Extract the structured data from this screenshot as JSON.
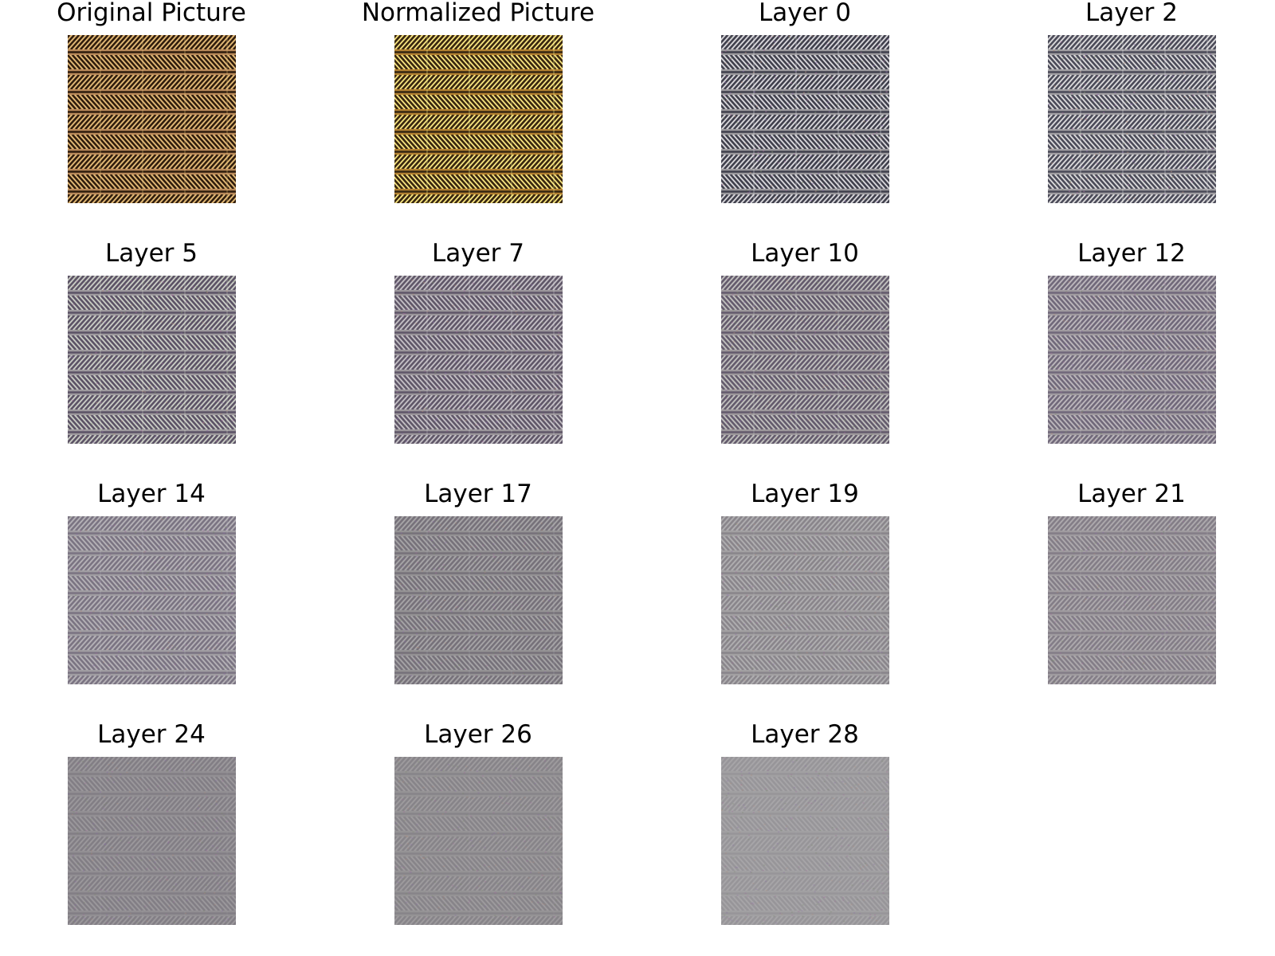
{
  "panels": [
    {
      "title": "Original Picture",
      "style": "original",
      "base": "#b8895a",
      "dark": "#2e1c0c",
      "light": "#e8c47a",
      "contrast": 1.0
    },
    {
      "title": "Normalized Picture",
      "style": "normalized",
      "base": "#a8752a",
      "dark": "#1a0d04",
      "light": "#ffff9a",
      "contrast": 1.0
    },
    {
      "title": "Layer 0",
      "style": "layer",
      "base": "#9c9a9e",
      "dark": "#3a3a48",
      "light": "#e8e8ec",
      "contrast": 0.95
    },
    {
      "title": "Layer 2",
      "style": "layer",
      "base": "#a19fa3",
      "dark": "#404050",
      "light": "#eeeeee",
      "contrast": 0.9
    },
    {
      "title": "Layer 5",
      "style": "layer",
      "base": "#9e9a9e",
      "dark": "#4a4056",
      "light": "#e0e6d8",
      "contrast": 0.8
    },
    {
      "title": "Layer 7",
      "style": "layer",
      "base": "#9b969b",
      "dark": "#4a4056",
      "light": "#dcd8e0",
      "contrast": 0.75
    },
    {
      "title": "Layer 10",
      "style": "layer",
      "base": "#9d989c",
      "dark": "#4a4058",
      "light": "#dadcd6",
      "contrast": 0.7
    },
    {
      "title": "Layer 12",
      "style": "layer",
      "base": "#a09ba0",
      "dark": "#504660",
      "light": "#d8d4da",
      "contrast": 0.6
    },
    {
      "title": "Layer 14",
      "style": "layer",
      "base": "#a09da2",
      "dark": "#544a62",
      "light": "#d0ccd4",
      "contrast": 0.5
    },
    {
      "title": "Layer 17",
      "style": "layer",
      "base": "#949294",
      "dark": "#524a5a",
      "light": "#c4c0c6",
      "contrast": 0.45
    },
    {
      "title": "Layer 19",
      "style": "layer",
      "base": "#a2a0a2",
      "dark": "#5a5462",
      "light": "#cfcdd0",
      "contrast": 0.35
    },
    {
      "title": "Layer 21",
      "style": "layer",
      "base": "#9f9b9f",
      "dark": "#5a5064",
      "light": "#c8c4c9",
      "contrast": 0.4
    },
    {
      "title": "Layer 24",
      "style": "layer",
      "base": "#928f93",
      "dark": "#5a5262",
      "light": "#b6b2b8",
      "contrast": 0.28
    },
    {
      "title": "Layer 26",
      "style": "layer",
      "base": "#959395",
      "dark": "#5c5662",
      "light": "#bab6bb",
      "contrast": 0.25
    },
    {
      "title": "Layer 28",
      "style": "layer",
      "base": "#a1a0a2",
      "dark": "#6a6670",
      "light": "#c4c2c6",
      "contrast": 0.18
    }
  ]
}
